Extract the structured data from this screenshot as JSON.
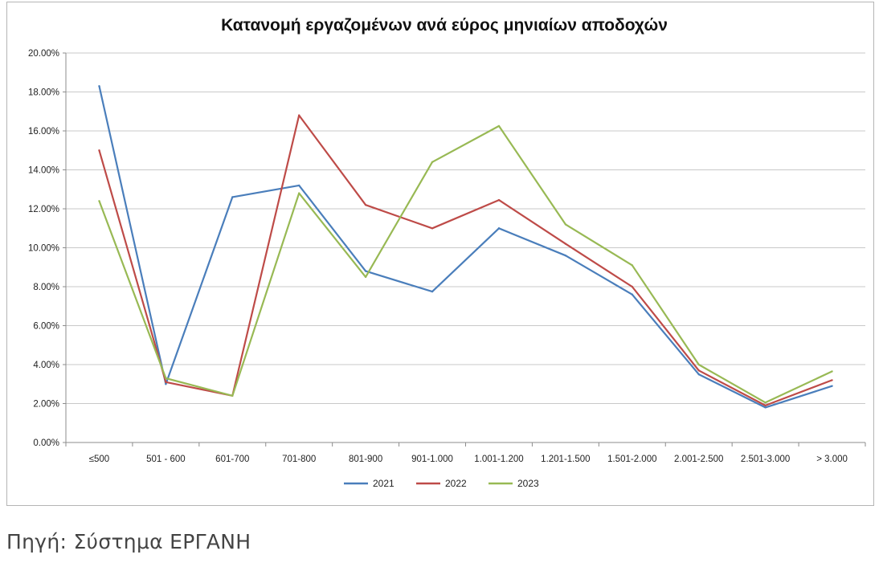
{
  "chart_data": {
    "type": "line",
    "title": "Κατανομή εργαζομένων ανά εύρος μηνιαίων αποδοχών",
    "categories": [
      "≤500",
      "501 - 600",
      "601-700",
      "701-800",
      "801-900",
      "901-1.000",
      "1.001-1.200",
      "1.201-1.500",
      "1.501-2.000",
      "2.001-2.500",
      "2.501-3.000",
      "> 3.000"
    ],
    "y_ticks": [
      "0.00%",
      "2.00%",
      "4.00%",
      "6.00%",
      "8.00%",
      "10.00%",
      "12.00%",
      "14.00%",
      "16.00%",
      "18.00%",
      "20.00%"
    ],
    "ylim": [
      0,
      20
    ],
    "y_unit": "percent",
    "grid": true,
    "legend_position": "bottom",
    "series": [
      {
        "name": "2021",
        "color": "#4a7ebb",
        "values": [
          18.3,
          3.0,
          12.6,
          13.2,
          8.8,
          7.75,
          11.0,
          9.6,
          7.6,
          3.5,
          1.8,
          2.9
        ]
      },
      {
        "name": "2022",
        "color": "#be4b48",
        "values": [
          15.0,
          3.1,
          2.4,
          16.8,
          12.2,
          11.0,
          12.45,
          10.2,
          8.0,
          3.7,
          1.9,
          3.2
        ]
      },
      {
        "name": "2023",
        "color": "#98b954",
        "values": [
          12.4,
          3.3,
          2.4,
          12.8,
          8.5,
          14.4,
          16.25,
          11.2,
          9.1,
          4.0,
          2.05,
          3.65
        ]
      }
    ]
  },
  "caption": {
    "source": "Πηγή: Σύστημα ΕΡΓΑΝΗ"
  }
}
